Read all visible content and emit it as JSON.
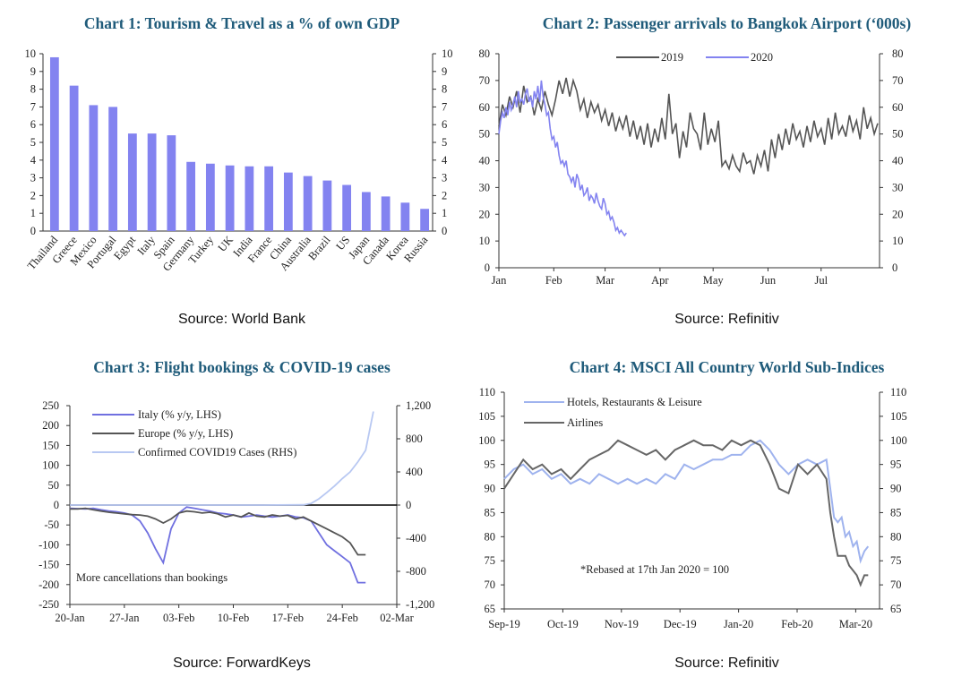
{
  "chart_data": [
    {
      "type": "bar",
      "title": "Chart 1: Tourism & Travel as a % of own GDP",
      "source": "Source: World Bank",
      "categories": [
        "Thailand",
        "Greece",
        "Mexico",
        "Portugal",
        "Egypt",
        "Italy",
        "Spain",
        "Germany",
        "Turkey",
        "UK",
        "India",
        "France",
        "China",
        "Australia",
        "Brazil",
        "US",
        "Japan",
        "Canada",
        "Korea",
        "Russia"
      ],
      "values": [
        9.8,
        8.2,
        7.1,
        7.0,
        5.5,
        5.5,
        5.4,
        3.9,
        3.8,
        3.7,
        3.65,
        3.65,
        3.3,
        3.1,
        2.85,
        2.6,
        2.2,
        1.95,
        1.6,
        1.25
      ],
      "ylim": [
        0,
        10
      ],
      "yticks": [
        "0",
        "1",
        "2",
        "3",
        "4",
        "5",
        "6",
        "7",
        "8",
        "9",
        "10"
      ],
      "color": "#8383F0"
    },
    {
      "type": "line",
      "title": "Chart 2: Passenger arrivals to Bangkok Airport (‘000s)",
      "source": "Source: Refinitiv",
      "ylim": [
        0,
        80
      ],
      "yticks": [
        "0",
        "10",
        "20",
        "30",
        "40",
        "50",
        "60",
        "70",
        "80"
      ],
      "xticks": [
        "Jan",
        "Feb",
        "Mar",
        "Apr",
        "May",
        "Jun",
        "Jul"
      ],
      "xtick_days": [
        0,
        31,
        60,
        91,
        121,
        152,
        182
      ],
      "x_max_days": 215,
      "series": [
        {
          "name": "2019",
          "color": "#555555",
          "x": [
            0,
            2,
            4,
            6,
            8,
            10,
            12,
            14,
            16,
            18,
            20,
            22,
            24,
            26,
            28,
            30,
            32,
            34,
            36,
            38,
            40,
            42,
            44,
            46,
            48,
            50,
            52,
            54,
            56,
            58,
            60,
            62,
            64,
            66,
            68,
            70,
            72,
            74,
            76,
            78,
            80,
            82,
            84,
            86,
            88,
            90,
            92,
            94,
            96,
            98,
            100,
            102,
            104,
            106,
            108,
            110,
            112,
            114,
            116,
            118,
            120,
            122,
            124,
            126,
            128,
            130,
            132,
            134,
            136,
            138,
            140,
            142,
            144,
            146,
            148,
            150,
            152,
            154,
            156,
            158,
            160,
            162,
            164,
            166,
            168,
            170,
            172,
            174,
            176,
            178,
            180,
            182,
            184,
            186,
            188,
            190,
            192,
            194,
            196,
            198,
            200,
            202,
            204,
            206,
            208,
            210,
            212,
            214
          ],
          "values": [
            53,
            61,
            57,
            64,
            60,
            66,
            58,
            68,
            62,
            64,
            57,
            63,
            59,
            66,
            61,
            57,
            63,
            70,
            65,
            71,
            64,
            70,
            66,
            59,
            63,
            56,
            62,
            58,
            61,
            55,
            59,
            53,
            58,
            51,
            56,
            52,
            57,
            49,
            55,
            48,
            53,
            46,
            54,
            45,
            52,
            47,
            56,
            48,
            65,
            50,
            54,
            41,
            51,
            45,
            58,
            52,
            50,
            44,
            58,
            46,
            52,
            47,
            55,
            38,
            40,
            37,
            42,
            38,
            36,
            43,
            39,
            40,
            35,
            42,
            38,
            44,
            36,
            48,
            41,
            50,
            44,
            52,
            46,
            54,
            48,
            51,
            45,
            53,
            47,
            55,
            49,
            52,
            46,
            56,
            48,
            58,
            50,
            53,
            49,
            57,
            51,
            55,
            48,
            60,
            52,
            56,
            50,
            54
          ]
        },
        {
          "name": "2020",
          "color": "#8383F0",
          "x": [
            0,
            1,
            2,
            3,
            4,
            5,
            6,
            7,
            8,
            9,
            10,
            11,
            12,
            13,
            14,
            15,
            16,
            17,
            18,
            19,
            20,
            21,
            22,
            23,
            24,
            25,
            26,
            27,
            28,
            29,
            30,
            31,
            32,
            33,
            34,
            35,
            36,
            37,
            38,
            39,
            40,
            41,
            42,
            43,
            44,
            45,
            46,
            47,
            48,
            49,
            50,
            51,
            52,
            53,
            54,
            55,
            56,
            57,
            58,
            59,
            60,
            61,
            62,
            63,
            64,
            65,
            66,
            67,
            68,
            69,
            70,
            71,
            72
          ],
          "values": [
            50,
            55,
            58,
            56,
            60,
            57,
            62,
            59,
            61,
            64,
            60,
            66,
            62,
            63,
            61,
            65,
            67,
            62,
            64,
            60,
            66,
            63,
            68,
            62,
            70,
            64,
            61,
            57,
            58,
            52,
            48,
            49,
            45,
            47,
            42,
            39,
            40,
            38,
            40,
            35,
            34,
            32,
            34,
            30,
            35,
            33,
            29,
            31,
            27,
            28,
            30,
            25,
            27,
            26,
            24,
            28,
            25,
            23,
            22,
            26,
            24,
            20,
            21,
            18,
            19,
            17,
            14,
            15,
            13,
            14,
            13,
            12,
            13
          ]
        }
      ]
    },
    {
      "type": "line",
      "title": "Chart 3: Flight bookings & COVID-19 cases",
      "source": "Source: ForwardKeys",
      "ylim": [
        -250,
        250
      ],
      "ylim_right": [
        -1200,
        1200
      ],
      "yticks": [
        "-250",
        "-200",
        "-150",
        "-100",
        "-50",
        "0",
        "50",
        "100",
        "150",
        "200",
        "250"
      ],
      "yticks_right": [
        "-1,200",
        "-800",
        "-400",
        "0",
        "400",
        "800",
        "1,200"
      ],
      "xticks": [
        "20-Jan",
        "27-Jan",
        "03-Feb",
        "10-Feb",
        "17-Feb",
        "24-Feb",
        "02-Mar"
      ],
      "x_max_days": 42,
      "annotation": "More cancellations than bookings",
      "series": [
        {
          "name": "Italy (% y/y, LHS)",
          "color": "#7070E0",
          "axis": "left",
          "x": [
            0,
            1,
            2,
            3,
            4,
            5,
            6,
            7,
            8,
            9,
            10,
            11,
            12,
            13,
            14,
            15,
            16,
            17,
            18,
            19,
            20,
            21,
            22,
            23,
            24,
            25,
            26,
            27,
            28,
            29,
            30,
            31,
            32,
            33,
            34,
            35,
            36,
            37,
            38
          ],
          "values": [
            -8,
            -9,
            -10,
            -8,
            -12,
            -15,
            -17,
            -20,
            -25,
            -40,
            -70,
            -110,
            -145,
            -60,
            -20,
            -5,
            -8,
            -12,
            -15,
            -20,
            -22,
            -25,
            -30,
            -28,
            -25,
            -28,
            -30,
            -28,
            -25,
            -30,
            -32,
            -40,
            -70,
            -100,
            -115,
            -130,
            -145,
            -195,
            -195
          ]
        },
        {
          "name": "Europe (% y/y, LHS)",
          "color": "#555555",
          "axis": "left",
          "x": [
            0,
            1,
            2,
            3,
            4,
            5,
            6,
            7,
            8,
            9,
            10,
            11,
            12,
            13,
            14,
            15,
            16,
            17,
            18,
            19,
            20,
            21,
            22,
            23,
            24,
            25,
            26,
            27,
            28,
            29,
            30,
            31,
            32,
            33,
            34,
            35,
            36,
            37,
            38
          ],
          "values": [
            -10,
            -10,
            -8,
            -12,
            -15,
            -18,
            -20,
            -22,
            -24,
            -25,
            -28,
            -35,
            -45,
            -35,
            -20,
            -15,
            -17,
            -20,
            -18,
            -22,
            -30,
            -25,
            -30,
            -20,
            -28,
            -30,
            -25,
            -28,
            -26,
            -35,
            -30,
            -40,
            -50,
            -60,
            -70,
            -80,
            -95,
            -125,
            -125
          ]
        },
        {
          "name": "Confirmed COVID19 Cases (RHS)",
          "color": "#B8C8F2",
          "axis": "right",
          "x": [
            0,
            5,
            10,
            15,
            20,
            25,
            30,
            31,
            32,
            33,
            34,
            35,
            36,
            37,
            38,
            39
          ],
          "values": [
            0,
            0,
            0,
            0,
            0,
            0,
            3,
            20,
            76,
            150,
            230,
            320,
            400,
            520,
            660,
            1130
          ]
        }
      ]
    },
    {
      "type": "line",
      "title": "Chart 4: MSCI All Country World Sub-Indices",
      "source": "Source: Refinitiv",
      "ylim": [
        65,
        110
      ],
      "yticks": [
        "65",
        "70",
        "75",
        "80",
        "85",
        "90",
        "95",
        "100",
        "105",
        "110"
      ],
      "xticks": [
        "Sep-19",
        "Oct-19",
        "Nov-19",
        "Dec-19",
        "Jan-20",
        "Feb-20",
        "Mar-20"
      ],
      "x_max_days": 198,
      "annotation": "*Rebased at 17th Jan 2020 = 100",
      "series": [
        {
          "name": "Hotels, Restaurants & Leisure",
          "color": "#9FB3EE",
          "x": [
            0,
            5,
            10,
            15,
            20,
            25,
            30,
            35,
            40,
            45,
            50,
            55,
            60,
            65,
            70,
            75,
            80,
            85,
            90,
            95,
            100,
            105,
            110,
            115,
            120,
            125,
            130,
            135,
            140,
            145,
            150,
            155,
            160,
            165,
            170,
            172,
            174,
            176,
            178,
            180,
            182,
            184,
            186,
            188,
            190,
            192
          ],
          "values": [
            92,
            94,
            95,
            93,
            94,
            92,
            93,
            91,
            92,
            91,
            93,
            92,
            91,
            92,
            91,
            92,
            91,
            93,
            92,
            95,
            94,
            95,
            96,
            96,
            97,
            97,
            99,
            100,
            98,
            95,
            93,
            95,
            96,
            95,
            96,
            90,
            84,
            83,
            84,
            80,
            81,
            78,
            79,
            75,
            77,
            78
          ]
        },
        {
          "name": "Airlines",
          "color": "#666666",
          "x": [
            0,
            5,
            10,
            15,
            20,
            25,
            30,
            35,
            40,
            45,
            50,
            55,
            60,
            65,
            70,
            75,
            80,
            85,
            90,
            95,
            100,
            105,
            110,
            115,
            120,
            125,
            130,
            135,
            140,
            145,
            150,
            155,
            160,
            165,
            170,
            172,
            174,
            176,
            178,
            180,
            182,
            184,
            186,
            188,
            190,
            192
          ],
          "values": [
            90,
            93,
            96,
            94,
            95,
            93,
            94,
            92,
            94,
            96,
            97,
            98,
            100,
            99,
            98,
            97,
            98,
            96,
            98,
            99,
            100,
            99,
            99,
            98,
            100,
            99,
            100,
            99,
            95,
            90,
            89,
            95,
            93,
            95,
            92,
            85,
            80,
            76,
            76,
            76,
            74,
            73,
            72,
            70,
            72,
            72
          ]
        }
      ]
    }
  ]
}
